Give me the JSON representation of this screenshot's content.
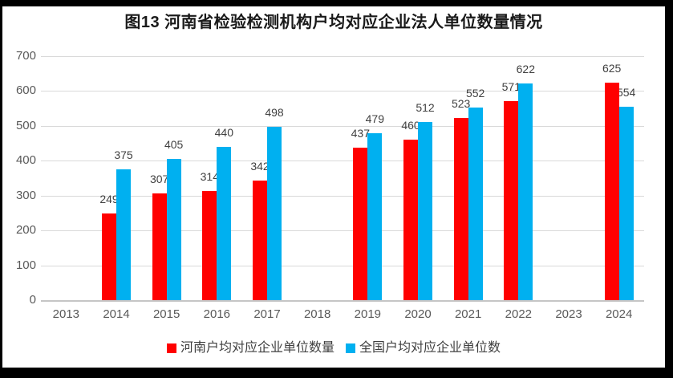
{
  "title": "图13 河南省检验检测机构户均对应企业法人单位数量情况",
  "colors": {
    "henan_series": "#FF0000",
    "national_series": "#00B0F0",
    "gridline": "#D9D9D9",
    "axis_line": "#C6C6C6",
    "axis_label": "#595959",
    "value_label": "#404040",
    "frame": "#000000",
    "background": "#FFFFFF"
  },
  "chart_data": {
    "type": "bar",
    "title": "图13 河南省检验检测机构户均对应企业法人单位数量情况",
    "categories": [
      "2013",
      "2014",
      "2015",
      "2016",
      "2017",
      "2018",
      "2019",
      "2020",
      "2021",
      "2022",
      "2023",
      "2024"
    ],
    "series": [
      {
        "name": "河南户均对应企业单位数量",
        "color": "#FF0000",
        "values": [
          null,
          249,
          307,
          314,
          342,
          null,
          437,
          460,
          523,
          571,
          null,
          625
        ]
      },
      {
        "name": "全国户均对应企业单位数",
        "color": "#00B0F0",
        "values": [
          null,
          375,
          405,
          440,
          498,
          null,
          479,
          512,
          552,
          622,
          null,
          554
        ]
      }
    ],
    "xlabel": "",
    "ylabel": "",
    "ylim": [
      0,
      700
    ],
    "yticks": [
      0,
      100,
      200,
      300,
      400,
      500,
      600,
      700
    ],
    "grid": true,
    "legend_position": "bottom",
    "value_labels": true
  },
  "legend": {
    "items": [
      {
        "label": "河南户均对应企业单位数量",
        "color": "#FF0000"
      },
      {
        "label": "全国户均对应企业单位数",
        "color": "#00B0F0"
      }
    ]
  }
}
